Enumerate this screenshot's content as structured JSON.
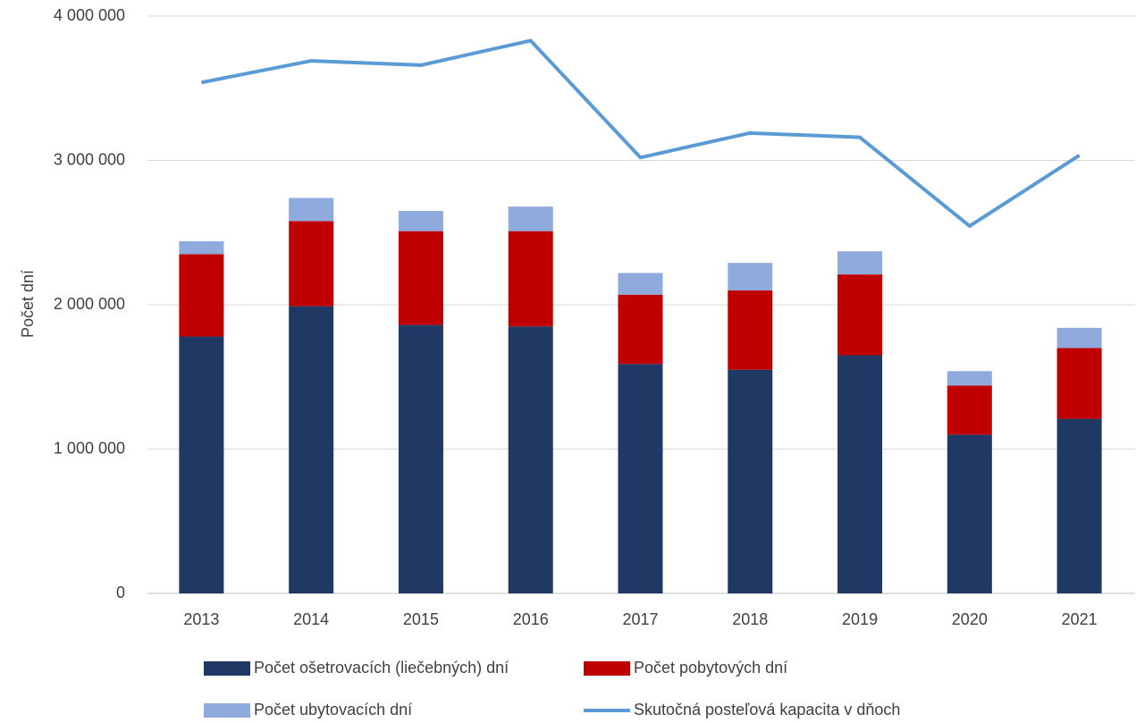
{
  "chart_data": {
    "type": "bar",
    "stacked": true,
    "ylabel": "Počet dní",
    "categories": [
      "2013",
      "2014",
      "2015",
      "2016",
      "2017",
      "2018",
      "2019",
      "2020",
      "2021"
    ],
    "series": [
      {
        "name": "Počet ošetrovacích (liečebných) dní",
        "type": "bar",
        "color": "#203864",
        "values": [
          1780000,
          1990000,
          1860000,
          1850000,
          1590000,
          1550000,
          1650000,
          1100000,
          1210000
        ]
      },
      {
        "name": "Počet pobytových dní",
        "type": "bar",
        "color": "#c00000",
        "values": [
          570000,
          590000,
          650000,
          660000,
          480000,
          550000,
          560000,
          340000,
          490000
        ]
      },
      {
        "name": "Počet ubytovacích dní",
        "type": "bar",
        "color": "#8faadc",
        "values": [
          90000,
          160000,
          140000,
          170000,
          150000,
          190000,
          160000,
          100000,
          140000
        ]
      },
      {
        "name": "Skutočná posteľová kapacita v dňoch",
        "type": "line",
        "color": "#5b9bd5",
        "values": [
          3540000,
          3690000,
          3660000,
          3830000,
          3020000,
          3190000,
          3160000,
          2545000,
          3035000
        ]
      }
    ],
    "ylim": [
      0,
      4000000
    ],
    "yticks": [
      0,
      {
        "value": 1000000,
        "label": "1 000 000"
      },
      {
        "value": 2000000,
        "label": "2 000 000"
      },
      {
        "value": 3000000,
        "label": "3 000 000"
      },
      {
        "value": 4000000,
        "label": "4 000 000"
      }
    ],
    "grid": true
  }
}
